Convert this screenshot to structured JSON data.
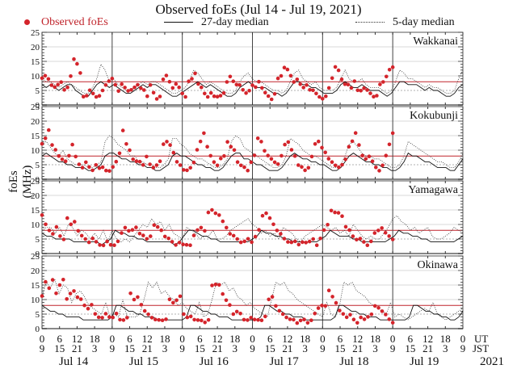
{
  "chart_data": {
    "type": "scatter",
    "title": "Observed foEs (Jul 14 - Jul 19, 2021)",
    "ylabel": "foEs (MHz)",
    "ylim": [
      0,
      25
    ],
    "yticks": [
      "0",
      "5",
      "10",
      "15",
      "20",
      "25"
    ],
    "legend": {
      "placement": "top",
      "entries": [
        {
          "label": "Observed foEs",
          "style": "red-dot",
          "color": "#d4242b"
        },
        {
          "label": "27-day median",
          "style": "solid-line"
        },
        {
          "label": "5-day median",
          "style": "dotted-line"
        }
      ]
    },
    "reference_lines": {
      "red_level": 8,
      "dashed_level": 5
    },
    "x_axis": {
      "ut_ticks": [
        "0",
        "6",
        "12",
        "18",
        "0",
        "6",
        "12",
        "18",
        "0",
        "6",
        "12",
        "18",
        "0",
        "6",
        "12",
        "18",
        "0",
        "6",
        "12",
        "18",
        "0",
        "6",
        "12",
        "18",
        "0"
      ],
      "jst_ticks": [
        "9",
        "15",
        "21",
        "3",
        "9",
        "15",
        "21",
        "3",
        "9",
        "15",
        "21",
        "3",
        "9",
        "15",
        "21",
        "3",
        "9",
        "15",
        "21",
        "3",
        "9",
        "15",
        "21",
        "3",
        "9"
      ],
      "ut_label": "UT",
      "jst_label": "JST",
      "days": [
        "Jul 14",
        "Jul 15",
        "Jul 16",
        "Jul 17",
        "Jul 18",
        "Jul 19"
      ],
      "year": "2021"
    },
    "panels": [
      {
        "station": "Wakkanai",
        "observed_until_day": 5,
        "observed_profile": [
          9,
          10,
          9,
          7,
          6,
          7,
          8,
          5,
          6,
          10,
          16,
          14,
          11,
          3,
          3,
          5,
          4,
          3,
          3,
          5,
          7,
          8,
          9,
          7,
          5,
          7,
          6,
          5,
          5,
          6,
          7,
          6,
          5,
          3,
          7,
          4,
          2,
          3,
          9,
          10,
          8,
          6,
          7,
          6,
          4,
          3,
          8,
          9,
          11,
          7,
          6,
          4,
          3,
          4,
          3,
          3,
          3,
          4,
          8,
          10,
          8,
          7,
          7,
          5,
          4,
          5,
          7,
          6,
          8,
          6,
          4,
          3,
          2,
          4,
          9,
          10,
          13,
          12,
          10,
          8,
          9,
          7,
          6,
          7,
          5,
          5,
          4,
          3,
          2,
          3,
          6,
          9,
          13,
          12,
          9,
          7,
          7,
          6,
          8,
          5,
          5,
          6,
          5,
          4,
          3,
          3,
          7,
          8,
          10,
          12,
          13
        ],
        "median27_profile": [
          7,
          6,
          7,
          6,
          5,
          6,
          7,
          7,
          5,
          4,
          3,
          3,
          5,
          7,
          8,
          7,
          6,
          7,
          6,
          5,
          4,
          4,
          5,
          6,
          7,
          6,
          7,
          7,
          6,
          5,
          4,
          3,
          3,
          4,
          5,
          6,
          7,
          8,
          7,
          6,
          7,
          6,
          5,
          4,
          3,
          3,
          4,
          6,
          7,
          8,
          7,
          6,
          6,
          6,
          5,
          4,
          4,
          3,
          4,
          6,
          8,
          8,
          7,
          7,
          6,
          6,
          5,
          4,
          4,
          4,
          5,
          7,
          8,
          7,
          6,
          6,
          7,
          6,
          5,
          5,
          5,
          4,
          3,
          4,
          6,
          8,
          8,
          7,
          7,
          7,
          6,
          5,
          6,
          5,
          5,
          4,
          3,
          3,
          4,
          6,
          7
        ],
        "median5_profile": [
          9,
          8,
          8,
          7,
          6,
          7,
          8,
          7,
          6,
          5,
          4,
          4,
          6,
          9,
          14,
          12,
          8,
          9,
          7,
          6,
          5,
          5,
          6,
          7,
          8,
          7,
          8,
          8,
          7,
          6,
          5,
          4,
          4,
          5,
          6,
          8,
          12,
          11,
          9,
          7,
          8,
          7,
          6,
          5,
          4,
          4,
          5,
          8,
          10,
          11,
          9,
          8,
          8,
          7,
          6,
          5,
          5,
          4,
          5,
          8,
          11,
          12,
          9,
          8,
          7,
          8,
          6,
          5,
          5,
          5,
          6,
          9,
          12,
          9,
          8,
          8,
          9,
          7,
          6,
          6,
          6,
          5,
          4,
          5,
          8,
          12,
          11,
          9,
          9,
          8,
          7,
          6,
          7,
          6,
          6,
          5,
          4,
          4,
          5,
          9,
          12
        ]
      },
      {
        "station": "Kokubunji",
        "observed_until_day": 5,
        "observed_profile": [
          12,
          14,
          17,
          12,
          10,
          8,
          7,
          6,
          8,
          12,
          8,
          5,
          4,
          6,
          4,
          3,
          5,
          4,
          4,
          3,
          3,
          4,
          6,
          9,
          17,
          12,
          10,
          7,
          6,
          6,
          5,
          8,
          5,
          4,
          5,
          6,
          12,
          13,
          12,
          9,
          6,
          5,
          3,
          3,
          4,
          6,
          10,
          13,
          16,
          11,
          8,
          6,
          5,
          7,
          8,
          13,
          11,
          10,
          6,
          5,
          4,
          3,
          6,
          8,
          14,
          13,
          10,
          8,
          7,
          6,
          5,
          8,
          12,
          13,
          10,
          8,
          5,
          4,
          3,
          4,
          8,
          12,
          13,
          11,
          9,
          7,
          6,
          5,
          4,
          5,
          7,
          11,
          13,
          16,
          12,
          8,
          7,
          8,
          6,
          4,
          3,
          5,
          8,
          12,
          16
        ],
        "median27_profile": [
          8,
          9,
          8,
          7,
          6,
          6,
          5,
          5,
          4,
          4,
          4,
          3,
          3,
          4,
          5,
          8,
          9,
          9,
          8,
          7,
          7,
          6,
          6,
          5,
          5,
          4,
          4,
          3,
          3,
          4,
          5,
          8,
          9,
          8,
          8,
          7,
          6,
          5,
          5,
          4,
          4,
          3,
          3,
          4,
          6,
          8,
          9,
          9,
          7,
          7,
          6,
          5,
          5,
          4,
          3,
          3,
          3,
          4,
          6,
          8,
          9,
          8,
          7,
          7,
          6,
          6,
          5,
          5,
          4,
          3,
          3,
          4,
          6,
          8,
          9,
          8,
          7,
          6,
          6,
          5,
          5,
          4,
          4,
          3,
          3,
          4,
          6,
          9,
          8,
          8,
          7,
          6,
          6,
          5,
          4,
          4,
          4,
          3,
          3,
          5,
          7
        ],
        "median5_profile": [
          12,
          13,
          11,
          9,
          8,
          10,
          7,
          6,
          5,
          5,
          5,
          4,
          4,
          5,
          6,
          13,
          15,
          14,
          12,
          11,
          10,
          8,
          8,
          6,
          6,
          5,
          5,
          4,
          4,
          5,
          7,
          14,
          14,
          12,
          11,
          9,
          8,
          7,
          7,
          6,
          5,
          4,
          4,
          5,
          7,
          13,
          15,
          14,
          11,
          10,
          9,
          8,
          7,
          6,
          5,
          4,
          4,
          5,
          8,
          14,
          13,
          12,
          10,
          9,
          8,
          8,
          7,
          6,
          5,
          4,
          4,
          5,
          8,
          12,
          13,
          11,
          9,
          8,
          8,
          7,
          7,
          6,
          5,
          4,
          4,
          5,
          8,
          13,
          12,
          11,
          10,
          9,
          8,
          7,
          6,
          6,
          5,
          4,
          4,
          6,
          9
        ]
      },
      {
        "station": "Yamagawa",
        "observed_until_day": 5,
        "observed_profile": [
          13,
          10,
          8,
          7,
          9,
          6,
          5,
          12,
          10,
          11,
          8,
          6,
          5,
          4,
          5,
          4,
          3,
          3,
          4,
          3,
          3,
          4,
          7,
          9,
          8,
          8,
          9,
          7,
          6,
          5,
          6,
          10,
          9,
          8,
          6,
          5,
          4,
          3,
          4,
          3,
          3,
          3,
          6,
          8,
          9,
          8,
          14,
          15,
          14,
          13,
          11,
          9,
          7,
          6,
          5,
          4,
          4,
          5,
          4,
          6,
          8,
          13,
          14,
          12,
          10,
          8,
          7,
          5,
          4,
          4,
          4,
          3,
          4,
          4,
          4,
          5,
          3,
          5,
          8,
          10,
          15,
          14,
          14,
          13,
          9,
          8,
          6,
          5,
          5,
          4,
          3,
          4,
          7,
          8,
          9,
          7,
          6,
          5
        ],
        "median27_profile": [
          7,
          6,
          6,
          5,
          5,
          5,
          5,
          4,
          4,
          4,
          4,
          4,
          4,
          3,
          4,
          5,
          8,
          7,
          7,
          6,
          6,
          5,
          5,
          4,
          4,
          4,
          4,
          4,
          4,
          3,
          4,
          6,
          8,
          8,
          7,
          6,
          6,
          5,
          5,
          4,
          4,
          4,
          4,
          4,
          4,
          4,
          5,
          6,
          8,
          7,
          7,
          6,
          6,
          5,
          5,
          4,
          4,
          4,
          4,
          4,
          4,
          5,
          6,
          8,
          7,
          6,
          6,
          6,
          5,
          5,
          4,
          4,
          4,
          4,
          4,
          4,
          5,
          6,
          8,
          7,
          7,
          6,
          6,
          5,
          5,
          4,
          4,
          4,
          4,
          4,
          4,
          5,
          6
        ],
        "median5_profile": [
          8,
          9,
          9,
          7,
          9,
          6,
          10,
          9,
          6,
          8,
          7,
          5,
          7,
          5,
          8,
          4,
          8,
          5,
          4,
          5,
          4,
          6,
          8,
          10,
          9,
          12,
          10,
          11,
          8,
          10,
          7,
          6,
          5,
          9,
          8,
          7,
          5,
          6,
          6,
          8,
          5,
          5,
          6,
          8,
          9,
          10,
          11,
          12,
          10,
          9,
          7,
          8,
          6,
          7,
          5,
          9,
          8,
          7,
          5,
          4,
          6,
          7,
          8,
          9,
          10,
          9,
          8,
          9,
          7,
          8,
          6,
          10,
          8,
          6,
          5,
          6,
          5,
          5,
          7,
          9,
          12,
          13,
          11,
          10,
          8,
          9,
          7,
          8,
          9,
          6,
          5,
          5,
          6,
          7,
          9,
          8,
          7
        ]
      },
      {
        "station": "Okinawa",
        "observed_until_day": 5,
        "observed_profile": [
          11,
          16,
          14,
          17,
          12,
          15,
          17,
          10,
          12,
          13,
          11,
          10,
          8,
          7,
          8,
          5,
          4,
          4,
          5,
          4,
          4,
          5,
          3,
          3,
          4,
          12,
          10,
          11,
          8,
          6,
          5,
          4,
          3,
          3,
          3,
          3,
          10,
          9,
          10,
          11,
          5,
          4,
          4,
          3,
          3,
          3,
          2,
          3,
          15,
          15,
          15,
          12,
          10,
          8,
          5,
          6,
          5,
          3,
          3,
          4,
          3,
          3,
          3,
          4,
          10,
          11,
          8,
          6,
          5,
          4,
          3,
          3,
          2,
          3,
          3,
          2,
          3,
          5,
          7,
          8,
          8,
          13,
          11,
          9,
          6,
          5,
          4,
          5,
          3,
          2,
          4,
          3,
          4,
          5,
          8,
          7,
          6,
          5,
          3,
          2
        ],
        "median27_profile": [
          8,
          7,
          6,
          6,
          5,
          5,
          4,
          4,
          4,
          4,
          3,
          3,
          3,
          3,
          3,
          3,
          3,
          4,
          8,
          8,
          7,
          6,
          6,
          5,
          5,
          4,
          4,
          4,
          3,
          3,
          3,
          3,
          3,
          3,
          3,
          4,
          8,
          8,
          7,
          6,
          6,
          5,
          5,
          4,
          4,
          4,
          3,
          3,
          3,
          3,
          3,
          3,
          3,
          4,
          8,
          8,
          7,
          6,
          6,
          5,
          5,
          4,
          4,
          4,
          3,
          3,
          3,
          3,
          3,
          3,
          3,
          4,
          8,
          8,
          7,
          6,
          6,
          5,
          5,
          4,
          4,
          4,
          3,
          3,
          3,
          3,
          3,
          3,
          3,
          4,
          8,
          8,
          7,
          6,
          6,
          5,
          5,
          4,
          4,
          3,
          3,
          4,
          6
        ],
        "median5_profile": [
          11,
          16,
          14,
          17,
          12,
          15,
          14,
          9,
          12,
          13,
          11,
          8,
          7,
          6,
          5,
          9,
          4,
          5,
          4,
          10,
          4,
          4,
          4,
          5,
          10,
          16,
          14,
          16,
          12,
          13,
          11,
          10,
          8,
          9,
          7,
          6,
          5,
          9,
          4,
          5,
          10,
          16,
          15,
          16,
          13,
          14,
          11,
          10,
          8,
          9,
          7,
          6,
          5,
          4,
          10,
          16,
          15,
          16,
          13,
          12,
          10,
          9,
          8,
          7,
          6,
          5,
          4,
          9,
          5,
          4,
          8,
          16,
          15,
          16,
          13,
          12,
          11,
          9,
          8,
          7,
          6,
          5,
          9,
          4,
          5,
          4,
          3,
          4,
          5,
          6,
          7,
          6,
          9,
          5,
          4,
          3,
          4,
          5,
          6,
          7
        ]
      }
    ]
  }
}
